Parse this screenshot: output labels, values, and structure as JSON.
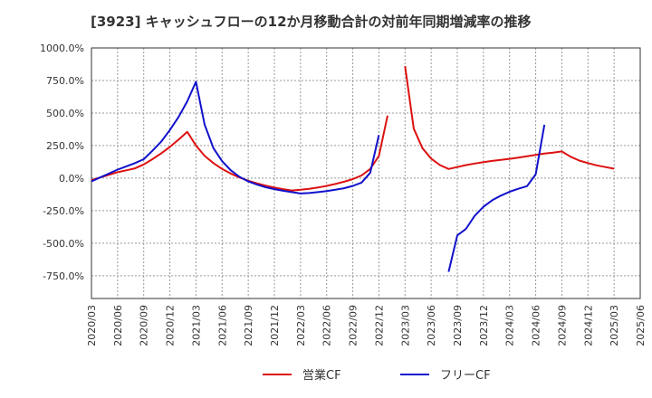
{
  "chart_data": {
    "type": "line",
    "title": "[3923]  キャッシュフローの12か月移動合計の対前年同期増減率の推移",
    "xlabel": "",
    "ylabel": "",
    "ylim": [
      -925,
      1000
    ],
    "y_ticks": [
      1000,
      750,
      500,
      250,
      0,
      -250,
      -500,
      -750
    ],
    "y_tick_labels": [
      "1000.0%",
      "750.0%",
      "500.0%",
      "250.0%",
      "0.0%",
      "-250.0%",
      "-500.0%",
      "-750.0%"
    ],
    "x_tick_labels": [
      "2020/03",
      "2020/06",
      "2020/09",
      "2020/12",
      "2021/03",
      "2021/06",
      "2021/09",
      "2021/12",
      "2022/03",
      "2022/06",
      "2022/09",
      "2022/12",
      "2023/03",
      "2023/06",
      "2023/09",
      "2023/12",
      "2024/03",
      "2024/06",
      "2024/09",
      "2024/12",
      "2025/03",
      "2025/06"
    ],
    "grid": true,
    "legend_position": "bottom",
    "series": [
      {
        "name": "営業CF",
        "color": "#dd1111",
        "points": [
          [
            0,
            -15
          ],
          [
            1,
            5
          ],
          [
            2,
            25
          ],
          [
            3,
            45
          ],
          [
            4,
            60
          ],
          [
            5,
            75
          ],
          [
            6,
            105
          ],
          [
            7,
            145
          ],
          [
            8,
            190
          ],
          [
            9,
            240
          ],
          [
            10,
            295
          ],
          [
            11,
            355
          ],
          [
            12,
            250
          ],
          [
            13,
            170
          ],
          [
            14,
            115
          ],
          [
            15,
            70
          ],
          [
            16,
            35
          ],
          [
            17,
            5
          ],
          [
            18,
            -20
          ],
          [
            19,
            -40
          ],
          [
            20,
            -58
          ],
          [
            21,
            -72
          ],
          [
            22,
            -85
          ],
          [
            23,
            -95
          ],
          [
            24,
            -90
          ],
          [
            25,
            -82
          ],
          [
            26,
            -72
          ],
          [
            27,
            -60
          ],
          [
            28,
            -45
          ],
          [
            29,
            -28
          ],
          [
            30,
            -8
          ],
          [
            31,
            20
          ],
          [
            32,
            70
          ],
          [
            33,
            170
          ],
          [
            34,
            480
          ],
          null,
          [
            36,
            860
          ],
          [
            37,
            380
          ],
          [
            38,
            230
          ],
          [
            39,
            150
          ],
          [
            40,
            100
          ],
          [
            41,
            70
          ],
          [
            42,
            85
          ],
          [
            43,
            100
          ],
          [
            44,
            112
          ],
          [
            45,
            122
          ],
          [
            46,
            132
          ],
          [
            47,
            140
          ],
          [
            48,
            148
          ],
          [
            49,
            158
          ],
          [
            50,
            168
          ],
          [
            51,
            178
          ],
          [
            52,
            188
          ],
          [
            53,
            195
          ],
          [
            54,
            205
          ],
          [
            55,
            165
          ],
          [
            56,
            135
          ],
          [
            57,
            115
          ],
          [
            58,
            98
          ],
          [
            59,
            85
          ],
          [
            60,
            72
          ]
        ]
      },
      {
        "name": "フリーCF",
        "color": "#1111cc",
        "points": [
          [
            0,
            -25
          ],
          [
            1,
            5
          ],
          [
            2,
            35
          ],
          [
            3,
            65
          ],
          [
            4,
            90
          ],
          [
            5,
            115
          ],
          [
            6,
            145
          ],
          [
            7,
            210
          ],
          [
            8,
            280
          ],
          [
            9,
            370
          ],
          [
            10,
            470
          ],
          [
            11,
            590
          ],
          [
            12,
            740
          ],
          [
            13,
            410
          ],
          [
            14,
            230
          ],
          [
            15,
            130
          ],
          [
            16,
            60
          ],
          [
            17,
            10
          ],
          [
            18,
            -25
          ],
          [
            19,
            -50
          ],
          [
            20,
            -70
          ],
          [
            21,
            -85
          ],
          [
            22,
            -97
          ],
          [
            23,
            -108
          ],
          [
            24,
            -118
          ],
          [
            25,
            -115
          ],
          [
            26,
            -108
          ],
          [
            27,
            -100
          ],
          [
            28,
            -90
          ],
          [
            29,
            -78
          ],
          [
            30,
            -60
          ],
          [
            31,
            -35
          ],
          [
            32,
            40
          ],
          [
            33,
            330
          ],
          null,
          [
            41,
            -720
          ],
          [
            42,
            -440
          ],
          [
            43,
            -390
          ],
          [
            44,
            -290
          ],
          [
            45,
            -220
          ],
          [
            46,
            -170
          ],
          [
            47,
            -135
          ],
          [
            48,
            -105
          ],
          [
            49,
            -82
          ],
          [
            50,
            -62
          ],
          [
            51,
            30
          ],
          [
            52,
            410
          ]
        ]
      }
    ]
  }
}
